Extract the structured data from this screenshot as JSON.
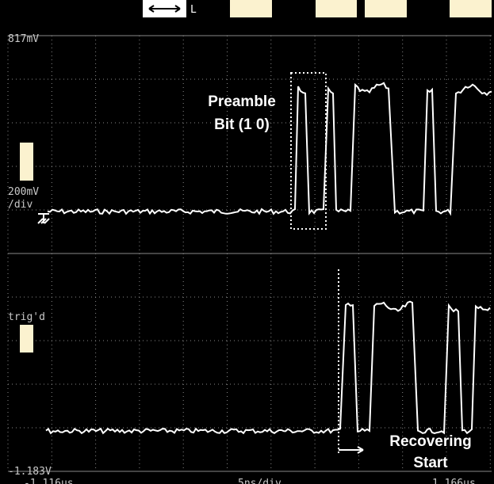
{
  "header": {
    "button": "L"
  },
  "scale": {
    "top": "817mV",
    "per_div": "200mV",
    "per_div_unit": "/div",
    "trigger": "trig'd",
    "bottom": "-1.183V"
  },
  "time": {
    "start": "-1.116us",
    "per_div": "5ns/div",
    "end": "1.166us"
  },
  "annotations": {
    "preamble_1": "Preamble",
    "preamble_2": "Bit (1 0)",
    "recover_1": "Recovering",
    "recover_2": "Start"
  }
}
